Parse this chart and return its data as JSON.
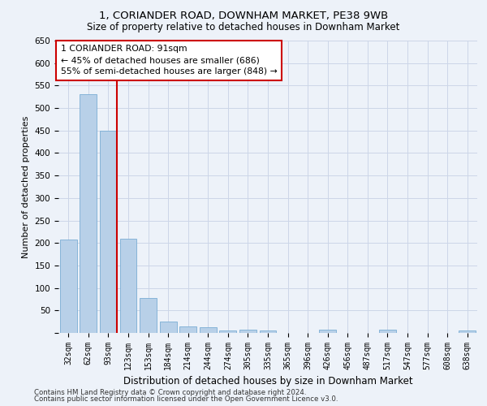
{
  "title": "1, CORIANDER ROAD, DOWNHAM MARKET, PE38 9WB",
  "subtitle": "Size of property relative to detached houses in Downham Market",
  "xlabel": "Distribution of detached houses by size in Downham Market",
  "ylabel": "Number of detached properties",
  "footer1": "Contains HM Land Registry data © Crown copyright and database right 2024.",
  "footer2": "Contains public sector information licensed under the Open Government Licence v3.0.",
  "categories": [
    "32sqm",
    "62sqm",
    "93sqm",
    "123sqm",
    "153sqm",
    "184sqm",
    "214sqm",
    "244sqm",
    "274sqm",
    "305sqm",
    "335sqm",
    "365sqm",
    "396sqm",
    "426sqm",
    "456sqm",
    "487sqm",
    "517sqm",
    "547sqm",
    "577sqm",
    "608sqm",
    "638sqm"
  ],
  "values": [
    207,
    530,
    450,
    210,
    78,
    26,
    15,
    12,
    5,
    8,
    5,
    0,
    0,
    8,
    0,
    0,
    7,
    0,
    0,
    0,
    6
  ],
  "bar_color": "#b8d0e8",
  "bar_edge_color": "#7aadd4",
  "red_line_index": 2,
  "annotation_line1": "1 CORIANDER ROAD: 91sqm",
  "annotation_line2": "← 45% of detached houses are smaller (686)",
  "annotation_line3": "55% of semi-detached houses are larger (848) →",
  "annotation_box_color": "#ffffff",
  "annotation_box_edge": "#cc0000",
  "red_line_color": "#cc0000",
  "grid_color": "#ccd6e8",
  "background_color": "#edf2f9",
  "ylim": [
    0,
    650
  ],
  "yticks": [
    0,
    50,
    100,
    150,
    200,
    250,
    300,
    350,
    400,
    450,
    500,
    550,
    600,
    650
  ]
}
